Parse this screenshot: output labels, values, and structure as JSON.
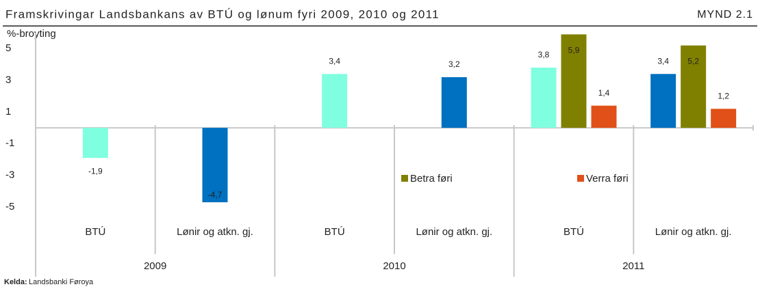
{
  "chart_data": {
    "type": "bar",
    "title": "Framskrivingar Landsbankans av BTÚ og lønum fyri 2009, 2010 og 2011",
    "figure_label": "MYND 2.1",
    "y_label": "%-broyting",
    "categories": [
      "BTÚ",
      "Lønir og atkn. gj.",
      "BTÚ",
      "Lønir og atkn. gj.",
      "BTÚ",
      "Lønir og atkn. gj."
    ],
    "x_groups": [
      "2009",
      "2010",
      "2011"
    ],
    "series": [
      {
        "colors": [
          "#7fffdf",
          "#0070c0",
          "#7fffdf",
          "#0070c0",
          "#7fffdf",
          "#0070c0"
        ],
        "values": [
          -1.9,
          -4.7,
          3.4,
          3.2,
          3.8,
          3.4
        ],
        "value_labels": [
          "-1,9",
          "-4,7",
          "3,4",
          "3,2",
          "3,8",
          "3,4"
        ]
      },
      {
        "name": "Betra føri",
        "color": "#808000",
        "values": [
          null,
          null,
          null,
          null,
          5.9,
          5.2
        ],
        "value_labels": [
          null,
          null,
          null,
          null,
          "5,9",
          "5,2"
        ]
      },
      {
        "name": "Verra føri",
        "color": "#e05018",
        "values": [
          null,
          null,
          null,
          null,
          1.4,
          1.2
        ],
        "value_labels": [
          null,
          null,
          null,
          null,
          "1,4",
          "1,2"
        ]
      }
    ],
    "ylim": [
      -5,
      6
    ],
    "yticks": [
      5,
      3,
      1,
      -1,
      -3,
      -5
    ],
    "grid": false,
    "source_label": "Kelda:",
    "source": "Landsbanki Føroya"
  }
}
